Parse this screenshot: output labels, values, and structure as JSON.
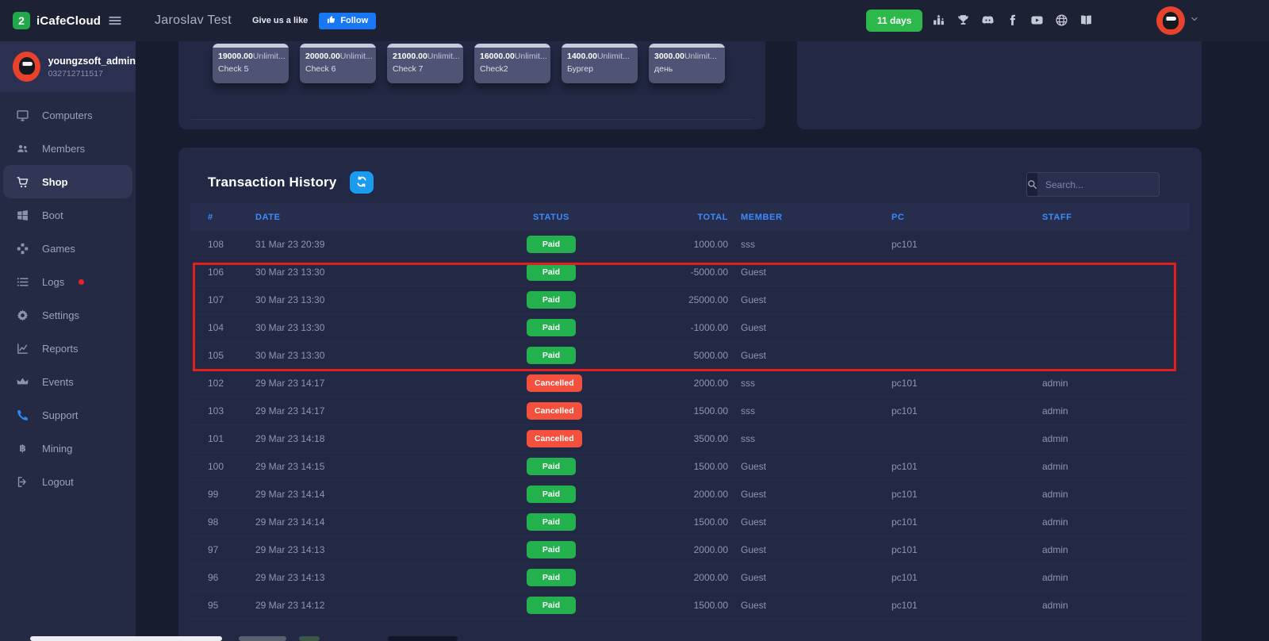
{
  "header": {
    "brand": "iCafeCloud",
    "logo_glyph": "2",
    "page_title": "Jaroslav Test",
    "like_label": "Give us a like",
    "follow_label": "Follow",
    "days_label": "11 days",
    "icons": [
      "leaderboard",
      "trophy",
      "discord",
      "facebook",
      "youtube",
      "globe",
      "book"
    ]
  },
  "sidebar": {
    "profile": {
      "name": "youngzsoft_admin",
      "id": "032712711517"
    },
    "items": [
      {
        "label": "Computers",
        "icon": "monitor",
        "active": false,
        "dot": false,
        "blue": false
      },
      {
        "label": "Members",
        "icon": "users",
        "active": false,
        "dot": false,
        "blue": false
      },
      {
        "label": "Shop",
        "icon": "cart",
        "active": true,
        "dot": false,
        "blue": false
      },
      {
        "label": "Boot",
        "icon": "windows",
        "active": false,
        "dot": false,
        "blue": false
      },
      {
        "label": "Games",
        "icon": "games",
        "active": false,
        "dot": false,
        "blue": false
      },
      {
        "label": "Logs",
        "icon": "list",
        "active": false,
        "dot": true,
        "blue": false
      },
      {
        "label": "Settings",
        "icon": "gear",
        "active": false,
        "dot": false,
        "blue": false
      },
      {
        "label": "Reports",
        "icon": "chart",
        "active": false,
        "dot": false,
        "blue": false
      },
      {
        "label": "Events",
        "icon": "crown",
        "active": false,
        "dot": false,
        "blue": false
      },
      {
        "label": "Support",
        "icon": "phone",
        "active": false,
        "dot": false,
        "blue": true
      },
      {
        "label": "Mining",
        "icon": "bitcoin",
        "active": false,
        "dot": false,
        "blue": false
      },
      {
        "label": "Logout",
        "icon": "logout",
        "active": false,
        "dot": false,
        "blue": false
      }
    ]
  },
  "shop_cards": [
    {
      "price": "19000.00",
      "limit": "Unlimit...",
      "name": "Check 5"
    },
    {
      "price": "20000.00",
      "limit": "Unlimit...",
      "name": "Check 6"
    },
    {
      "price": "21000.00",
      "limit": "Unlimit...",
      "name": "Check 7"
    },
    {
      "price": "16000.00",
      "limit": "Unlimit...",
      "name": "Check2"
    },
    {
      "price": "1400.00",
      "limit": "Unlimit...",
      "name": "Бургер"
    },
    {
      "price": "3000.00",
      "limit": "Unlimit...",
      "name": "день"
    }
  ],
  "transactions": {
    "title": "Transaction History",
    "search_placeholder": "Search...",
    "columns": [
      "#",
      "DATE",
      "STATUS",
      "TOTAL",
      "MEMBER",
      "PC",
      "STAFF"
    ],
    "rows": [
      {
        "id": "108",
        "date": "31 Mar 23 20:39",
        "status": "Paid",
        "total": "1000.00",
        "member": "sss",
        "pc": "pc101",
        "staff": ""
      },
      {
        "id": "106",
        "date": "30 Mar 23 13:30",
        "status": "Paid",
        "total": "-5000.00",
        "member": "Guest",
        "pc": "",
        "staff": ""
      },
      {
        "id": "107",
        "date": "30 Mar 23 13:30",
        "status": "Paid",
        "total": "25000.00",
        "member": "Guest",
        "pc": "",
        "staff": ""
      },
      {
        "id": "104",
        "date": "30 Mar 23 13:30",
        "status": "Paid",
        "total": "-1000.00",
        "member": "Guest",
        "pc": "",
        "staff": ""
      },
      {
        "id": "105",
        "date": "30 Mar 23 13:30",
        "status": "Paid",
        "total": "5000.00",
        "member": "Guest",
        "pc": "",
        "staff": ""
      },
      {
        "id": "102",
        "date": "29 Mar 23 14:17",
        "status": "Cancelled",
        "total": "2000.00",
        "member": "sss",
        "pc": "pc101",
        "staff": "admin"
      },
      {
        "id": "103",
        "date": "29 Mar 23 14:17",
        "status": "Cancelled",
        "total": "1500.00",
        "member": "sss",
        "pc": "pc101",
        "staff": "admin"
      },
      {
        "id": "101",
        "date": "29 Mar 23 14:18",
        "status": "Cancelled",
        "total": "3500.00",
        "member": "sss",
        "pc": "",
        "staff": "admin"
      },
      {
        "id": "100",
        "date": "29 Mar 23 14:15",
        "status": "Paid",
        "total": "1500.00",
        "member": "Guest",
        "pc": "pc101",
        "staff": "admin"
      },
      {
        "id": "99",
        "date": "29 Mar 23 14:14",
        "status": "Paid",
        "total": "2000.00",
        "member": "Guest",
        "pc": "pc101",
        "staff": "admin"
      },
      {
        "id": "98",
        "date": "29 Mar 23 14:14",
        "status": "Paid",
        "total": "1500.00",
        "member": "Guest",
        "pc": "pc101",
        "staff": "admin"
      },
      {
        "id": "97",
        "date": "29 Mar 23 14:13",
        "status": "Paid",
        "total": "2000.00",
        "member": "Guest",
        "pc": "pc101",
        "staff": "admin"
      },
      {
        "id": "96",
        "date": "29 Mar 23 14:13",
        "status": "Paid",
        "total": "2000.00",
        "member": "Guest",
        "pc": "pc101",
        "staff": "admin"
      },
      {
        "id": "95",
        "date": "29 Mar 23 14:12",
        "status": "Paid",
        "total": "1500.00",
        "member": "Guest",
        "pc": "pc101",
        "staff": "admin"
      }
    ],
    "annotation": {
      "highlighted_ids": [
        "106",
        "107",
        "104",
        "105"
      ],
      "color": "#e0201c"
    }
  },
  "colors": {
    "accent_blue": "#3e8bff",
    "paid_green": "#22b14c",
    "cancelled_red": "#f4503e",
    "days_green": "#2db84c",
    "follow_blue": "#1877f2",
    "refresh_blue": "#1a9bef",
    "annotation_red": "#e0201c"
  }
}
